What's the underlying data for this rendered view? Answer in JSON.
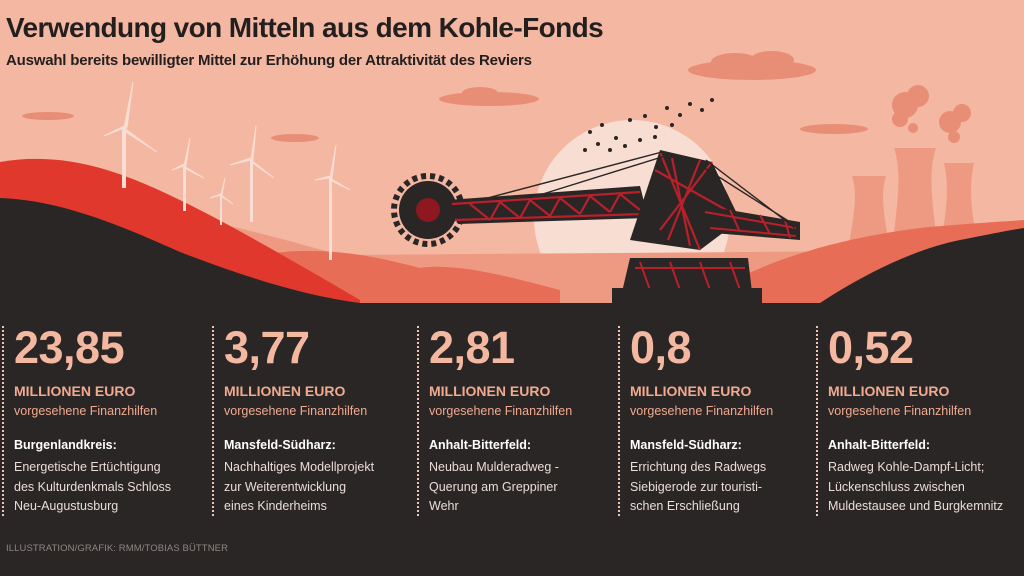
{
  "title": "Verwendung von Mitteln aus dem Kohle-Fonds",
  "subtitle": "Auswahl bereits bewilligter Mittel zur Erhöhung der Attraktivität des Reviers",
  "items": [
    {
      "amount": "23,85",
      "unit": "MILLIONEN EURO",
      "note": "vorgesehene Finanzhilfen",
      "region": "Burgenlandkreis:",
      "description": "Energetische Ertüchtigung\ndes Kulturdenkmals Schloss\nNeu-Augustusburg"
    },
    {
      "amount": "3,77",
      "unit": "MILLIONEN EURO",
      "note": "vorgesehene Finanzhilfen",
      "region": "Mansfeld-Südharz:",
      "description": "Nachhaltiges Modellprojekt\nzur Weiterentwicklung\neines Kinderheims"
    },
    {
      "amount": "2,81",
      "unit": "MILLIONEN EURO",
      "note": "vorgesehene Finanzhilfen",
      "region": "Anhalt-Bitterfeld:",
      "description": "Neubau Mulderadweg -\nQuerung am Greppiner\nWehr"
    },
    {
      "amount": "0,8",
      "unit": "MILLIONEN EURO",
      "note": "vorgesehene Finanzhilfen",
      "region": "Mansfeld-Südharz:",
      "description": "Errichtung des Radwegs\nSiebigerode zur touristi-\nschen Erschließung"
    },
    {
      "amount": "0,52",
      "unit": "MILLIONEN EURO",
      "note": "vorgesehene Finanzhilfen",
      "region": "Anhalt-Bitterfeld:",
      "description": "Radweg Kohle-Dampf-Licht;\nLückenschluss zwischen\nMuldestausee und Burgkemnitz"
    }
  ],
  "credit": "ILLUSTRATION/GRAFIK: RMM/TOBIAS BÜTTNER",
  "colors": {
    "sky": "#f3b7a2",
    "sun": "#f8ddd2",
    "hill_red": "#e0382d",
    "hill_dark": "#2a2626",
    "accent_text": "#f0aa90",
    "excavator": "#b8202a"
  }
}
